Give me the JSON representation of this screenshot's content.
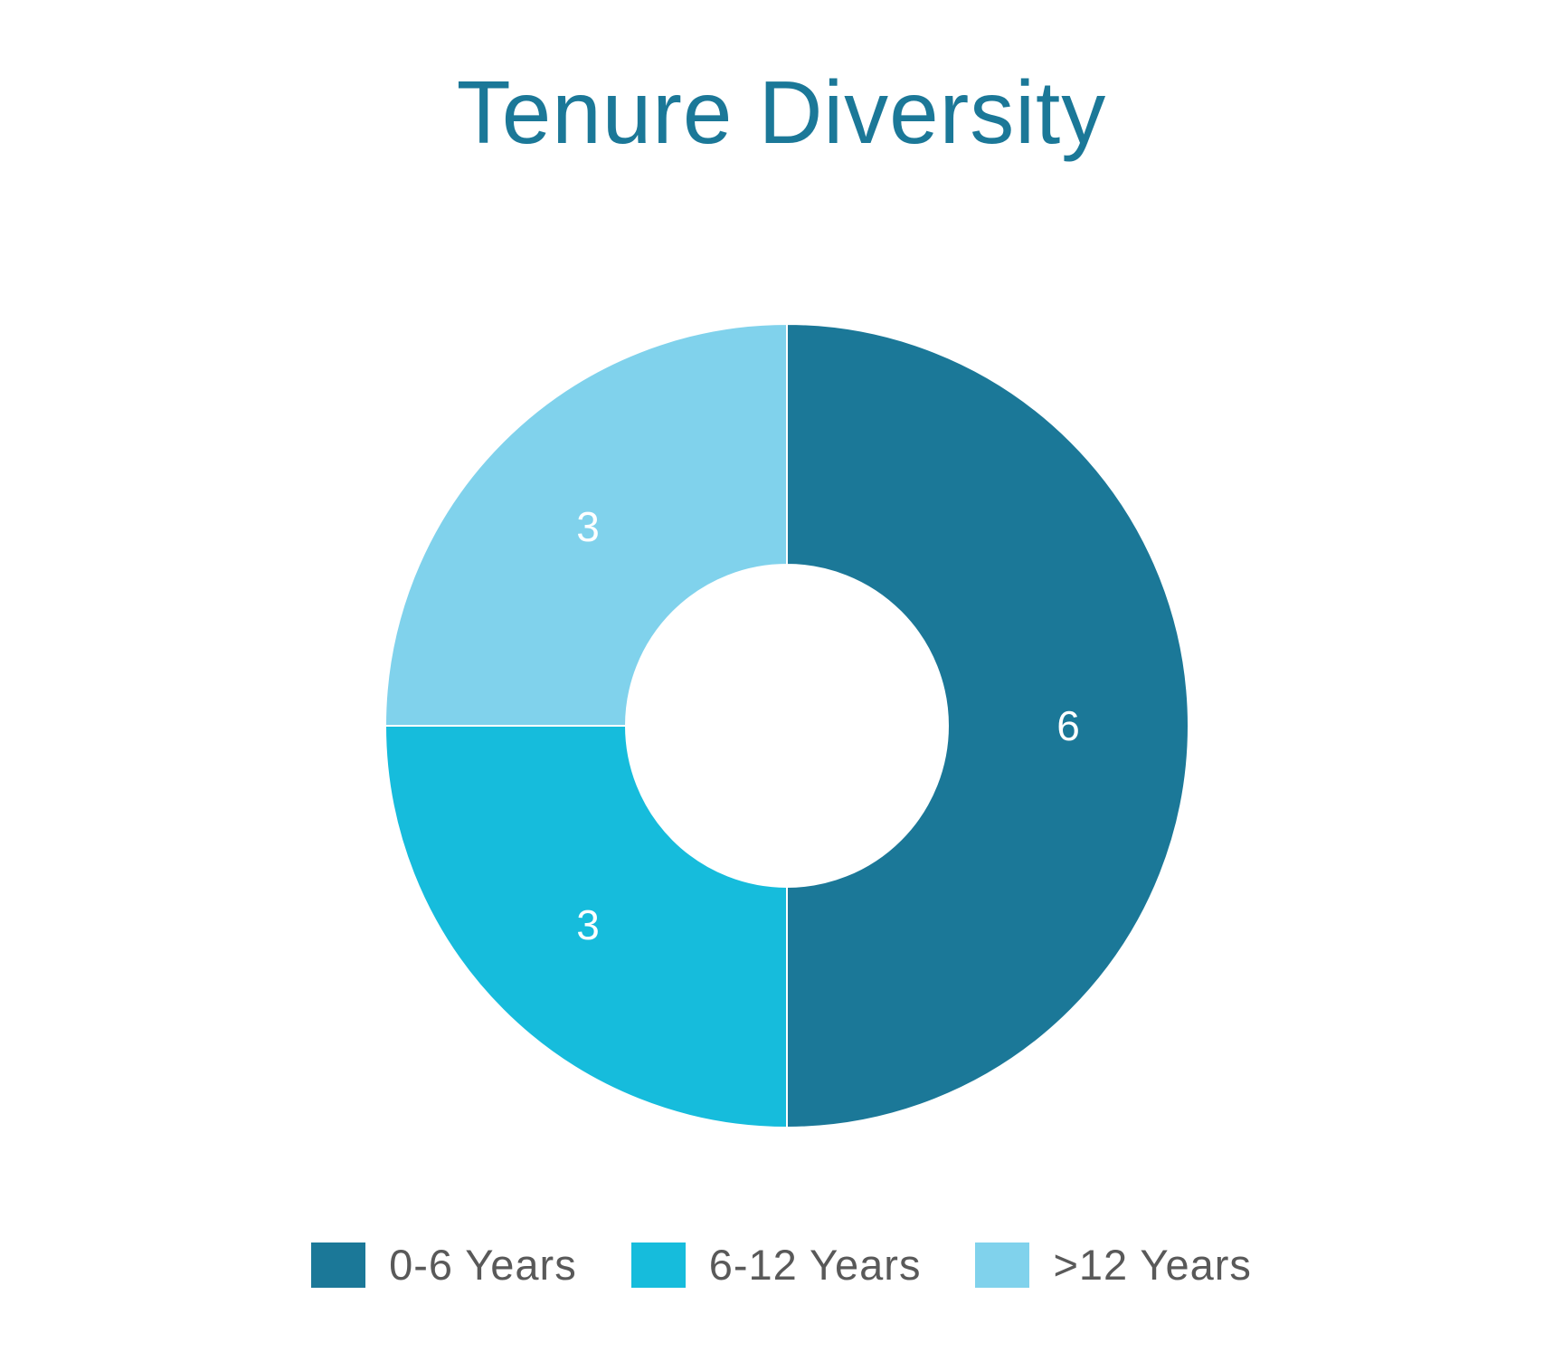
{
  "chart_data": {
    "type": "pie",
    "variant": "donut",
    "title": "Tenure Diversity",
    "categories": [
      "0-6 Years",
      "6-12 Years",
      ">12 Years"
    ],
    "values": [
      6,
      3,
      3
    ],
    "data_labels": [
      "6",
      "3",
      "3"
    ],
    "colors": [
      "#1b7898",
      "#16bcdc",
      "#80d2ec"
    ],
    "legend_position": "bottom",
    "title_color": "#1b7898",
    "label_color": "#ffffff",
    "background": "#ffffff"
  }
}
